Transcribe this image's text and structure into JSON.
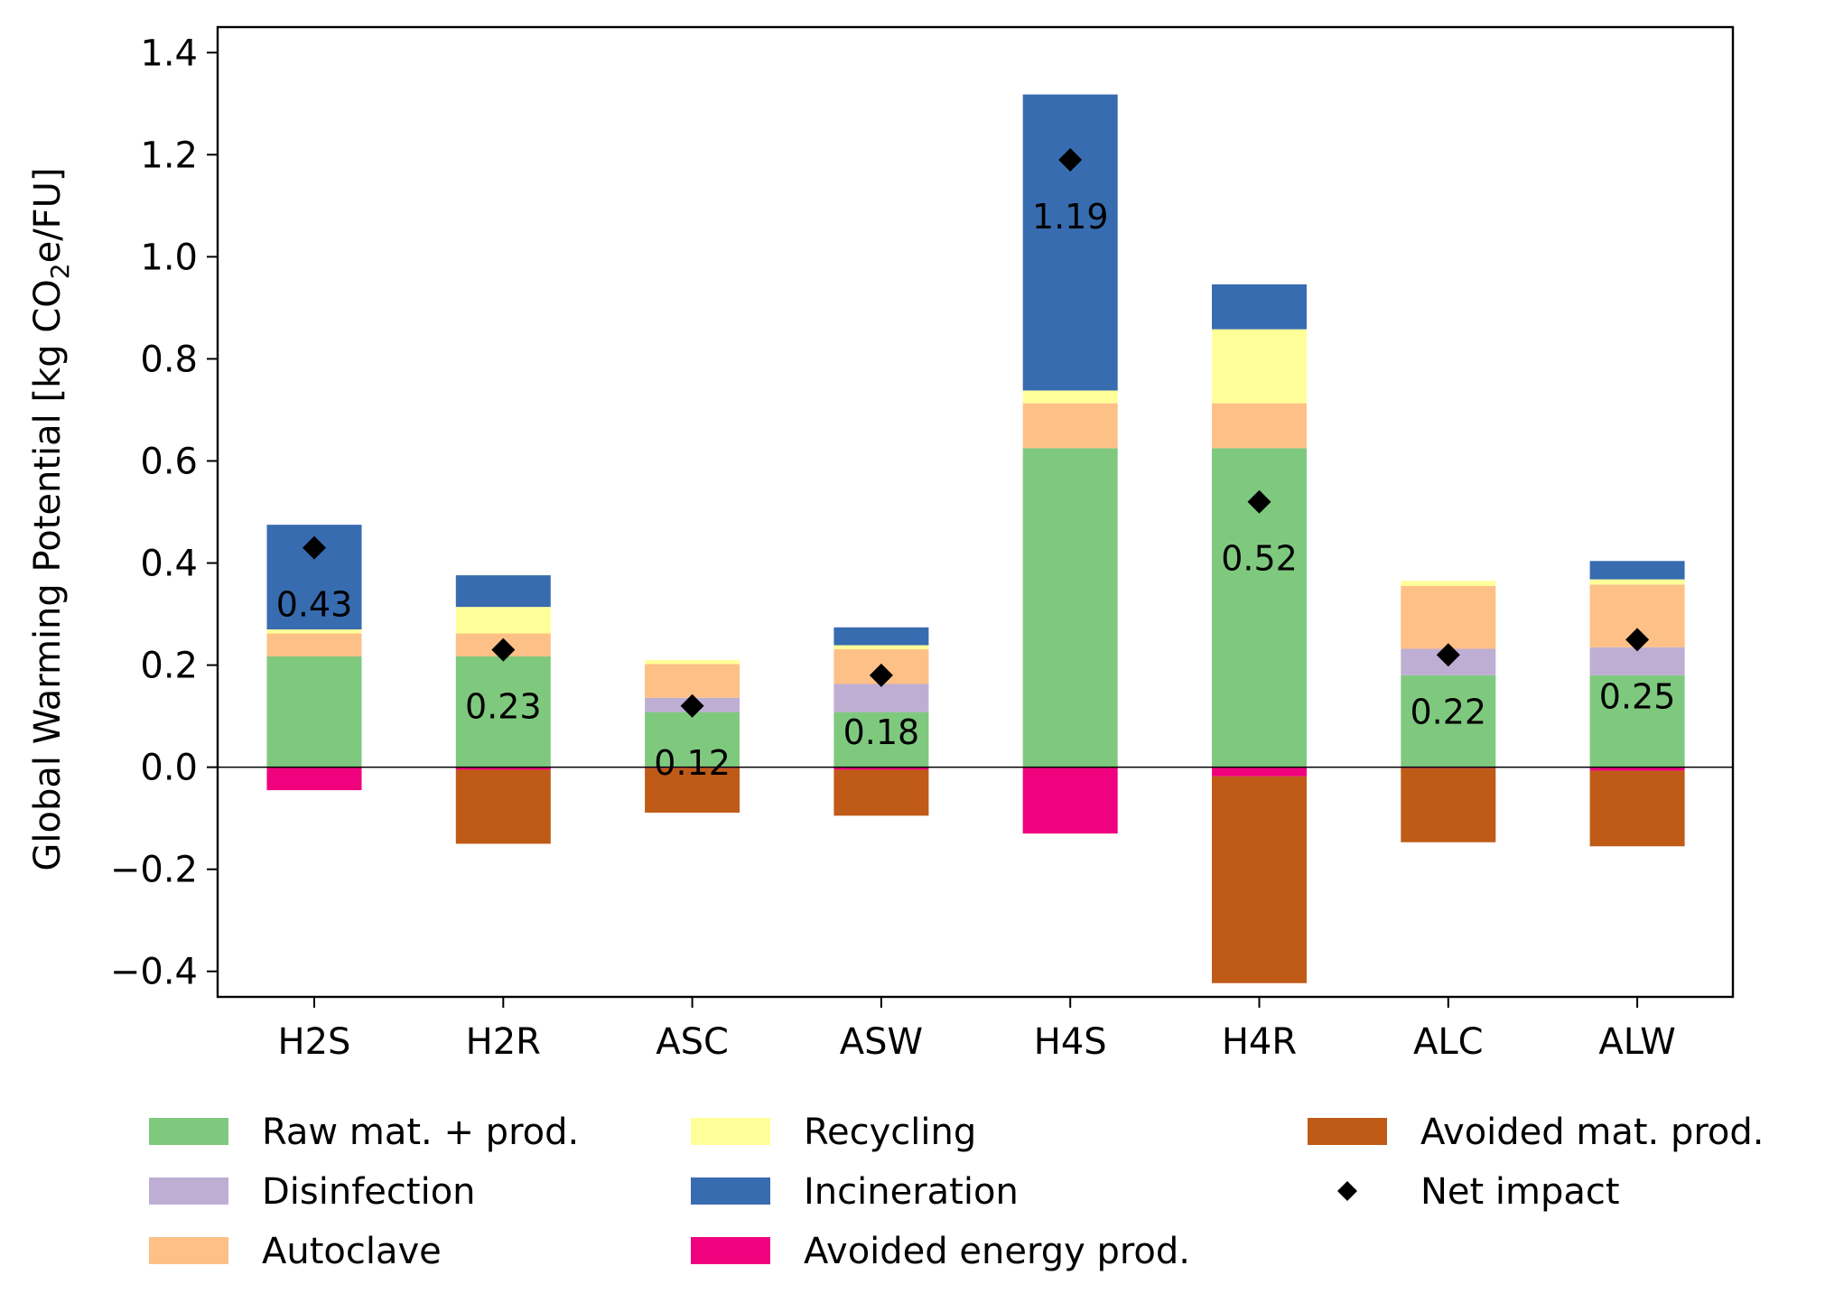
{
  "chart_data": {
    "type": "bar",
    "stacked": true,
    "categories": [
      "H2S",
      "H2R",
      "ASC",
      "ASW",
      "H4S",
      "H4R",
      "ALC",
      "ALW"
    ],
    "ylabel": "Global Warming Potential [kg CO₂e/FU]",
    "ylabel_parts": [
      "Global Warming Potential [kg CO",
      "2",
      "e/FU]"
    ],
    "ylim": [
      -0.45,
      1.45
    ],
    "yticks": [
      -0.4,
      -0.2,
      0.0,
      0.2,
      0.4,
      0.6,
      0.8,
      1.0,
      1.2,
      1.4
    ],
    "ytick_labels": [
      "−0.4",
      "−0.2",
      "0.0",
      "0.2",
      "0.4",
      "0.6",
      "0.8",
      "1.0",
      "1.2",
      "1.4"
    ],
    "grid": false,
    "zero_line": true,
    "legend_position": "bottom, outside plot area",
    "series": [
      {
        "name": "Raw mat. + prod.",
        "color": "#7fc97f",
        "values": [
          0.217,
          0.217,
          0.108,
          0.108,
          0.625,
          0.625,
          0.18,
          0.18
        ]
      },
      {
        "name": "Disinfection",
        "color": "#beaed4",
        "values": [
          0.0,
          0.0,
          0.028,
          0.055,
          0.0,
          0.0,
          0.052,
          0.055
        ]
      },
      {
        "name": "Autoclave",
        "color": "#fdc086",
        "values": [
          0.045,
          0.045,
          0.066,
          0.068,
          0.088,
          0.088,
          0.123,
          0.123
        ]
      },
      {
        "name": "Recycling",
        "color": "#ffff99",
        "values": [
          0.008,
          0.052,
          0.008,
          0.008,
          0.025,
          0.145,
          0.01,
          0.01
        ]
      },
      {
        "name": "Incineration",
        "color": "#386cb0",
        "values": [
          0.205,
          0.062,
          0.0,
          0.035,
          0.58,
          0.088,
          0.0,
          0.036
        ]
      },
      {
        "name": "Avoided energy prod.",
        "color": "#f0027f",
        "values": [
          -0.045,
          -0.005,
          -0.002,
          -0.005,
          -0.13,
          -0.018,
          -0.002,
          -0.007
        ]
      },
      {
        "name": "Avoided mat. prod.",
        "color": "#bf5b17",
        "values": [
          0.0,
          -0.145,
          -0.087,
          -0.09,
          0.0,
          -0.405,
          -0.145,
          -0.148
        ]
      }
    ],
    "net_impact": {
      "name": "Net impact",
      "marker": "diamond",
      "color": "#000000",
      "values": [
        0.43,
        0.23,
        0.12,
        0.18,
        1.19,
        0.52,
        0.22,
        0.25
      ],
      "labels": [
        "0.43",
        "0.23",
        "0.12",
        "0.18",
        "1.19",
        "0.52",
        "0.22",
        "0.25"
      ]
    },
    "legend": [
      {
        "label": "Raw mat. + prod.",
        "kind": "patch",
        "color": "#7fc97f"
      },
      {
        "label": "Disinfection",
        "kind": "patch",
        "color": "#beaed4"
      },
      {
        "label": "Autoclave",
        "kind": "patch",
        "color": "#fdc086"
      },
      {
        "label": "Recycling",
        "kind": "patch",
        "color": "#ffff99"
      },
      {
        "label": "Incineration",
        "kind": "patch",
        "color": "#386cb0"
      },
      {
        "label": "Avoided energy prod.",
        "kind": "patch",
        "color": "#f0027f"
      },
      {
        "label": "Avoided mat. prod.",
        "kind": "patch",
        "color": "#bf5b17"
      },
      {
        "label": "Net impact",
        "kind": "marker",
        "color": "#000000"
      }
    ]
  }
}
